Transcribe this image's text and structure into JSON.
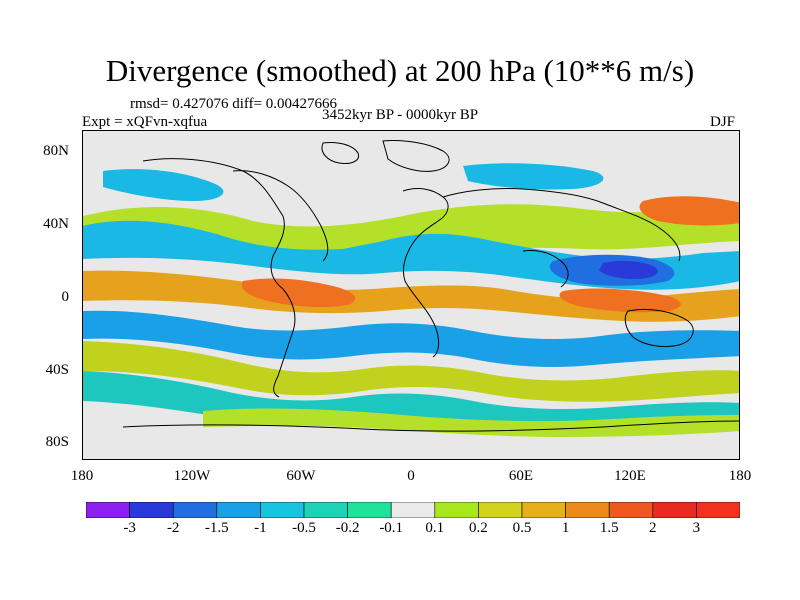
{
  "title": "Divergence (smoothed) at 200 hPa (10**6 m/s)",
  "stats": "rmsd= 0.427076 diff= 0.00427666",
  "experiment": "Expt = xQFvn-xqfua",
  "period": "3452kyr BP - 0000kyr BP",
  "season": "DJF",
  "lat_labels": [
    "80N",
    "40N",
    "0",
    "40S",
    "80S"
  ],
  "lon_labels": [
    "180",
    "120W",
    "60W",
    "0",
    "60E",
    "120E",
    "180"
  ],
  "legend": {
    "labels": [
      "-3",
      "-2",
      "-1.5",
      "-1",
      "-0.5",
      "-0.2",
      "-0.1",
      "0.1",
      "0.2",
      "0.5",
      "1",
      "1.5",
      "2",
      "3"
    ],
    "colors": [
      "#8c1ef0",
      "#2a3ad8",
      "#1f6fe0",
      "#1aa0e6",
      "#19c2de",
      "#1ed2b8",
      "#20e29a",
      "#eaeaea",
      "#a8e61e",
      "#d2d21e",
      "#e6b01a",
      "#ee8a1c",
      "#ee5a1e",
      "#e82a22",
      "#f0321e"
    ]
  },
  "colors": {
    "background": "#ffffff",
    "land_fill": "#e8e8e8"
  }
}
